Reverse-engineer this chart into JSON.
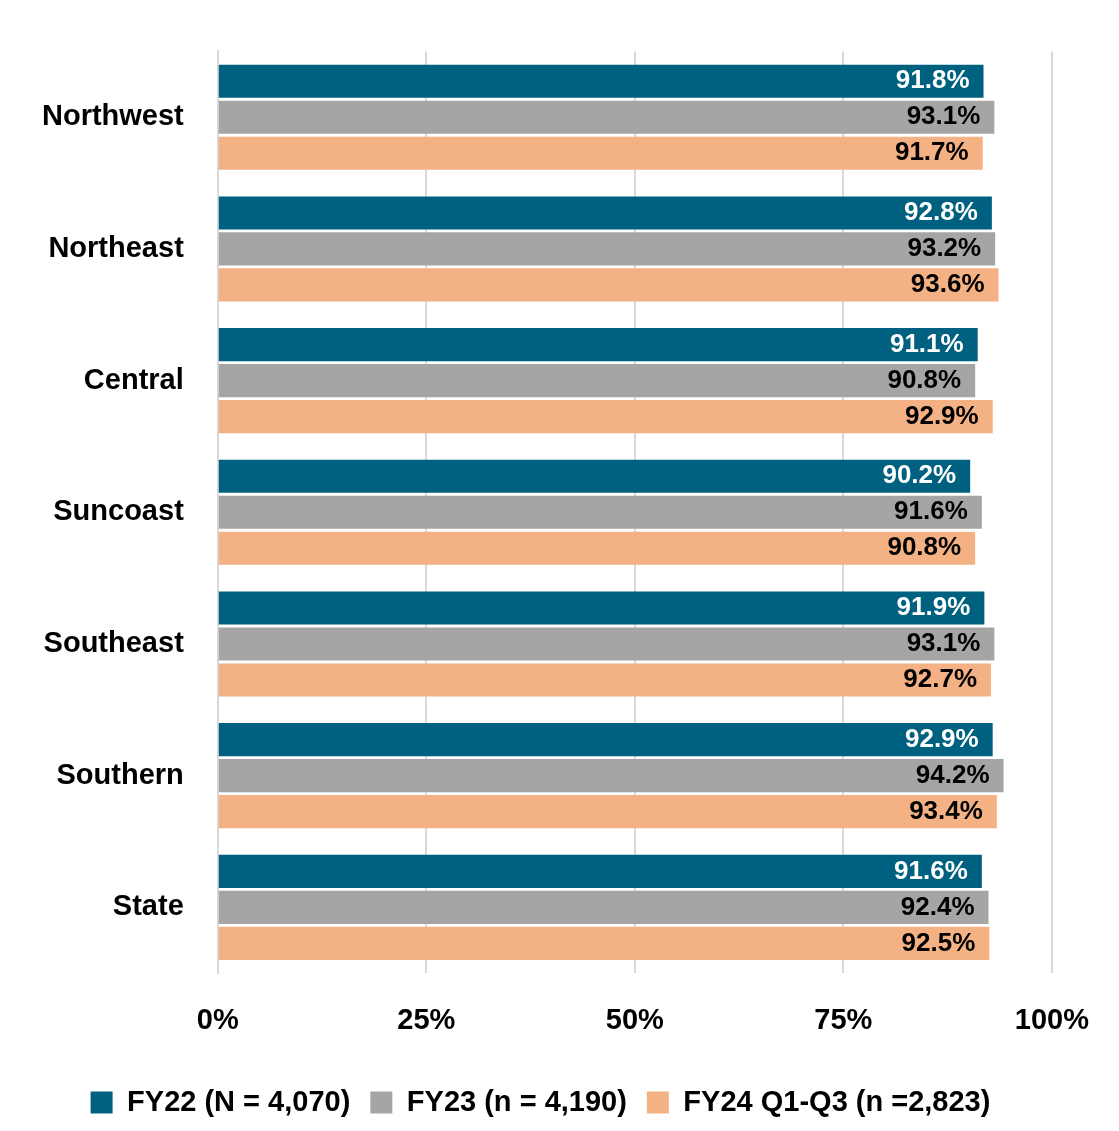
{
  "chart_data": {
    "type": "bar",
    "orientation": "horizontal",
    "categories": [
      "Northwest",
      "Northeast",
      "Central",
      "Suncoast",
      "Southeast",
      "Southern",
      "State"
    ],
    "series": [
      {
        "name": "FY22 (N = 4,070)",
        "color": "#00607f",
        "values": [
          91.8,
          92.8,
          91.1,
          90.2,
          91.9,
          92.9,
          91.6
        ],
        "value_labels": [
          "91.8%",
          "92.8%",
          "91.1%",
          "90.2%",
          "91.9%",
          "92.9%",
          "91.6%"
        ]
      },
      {
        "name": "FY23 (n = 4,190)",
        "color": "#a5a5a5",
        "values": [
          93.1,
          93.2,
          90.8,
          91.6,
          93.1,
          94.2,
          92.4
        ],
        "value_labels": [
          "93.1%",
          "93.2%",
          "90.8%",
          "91.6%",
          "93.1%",
          "94.2%",
          "92.4%"
        ]
      },
      {
        "name": "FY24 Q1-Q3 (n =2,823)",
        "color": "#f4b183",
        "values": [
          91.7,
          93.6,
          92.9,
          90.8,
          92.7,
          93.4,
          92.5
        ],
        "value_labels": [
          "91.7%",
          "93.6%",
          "92.9%",
          "90.8%",
          "92.7%",
          "93.4%",
          "92.5%"
        ]
      }
    ],
    "xlim": [
      0,
      100
    ],
    "xticks": [
      {
        "value": 0,
        "label": "0%"
      },
      {
        "value": 25,
        "label": "25%"
      },
      {
        "value": 50,
        "label": "50%"
      },
      {
        "value": 75,
        "label": "75%"
      },
      {
        "value": 100,
        "label": "100%"
      }
    ],
    "grid": "x",
    "legend": "bottom"
  }
}
